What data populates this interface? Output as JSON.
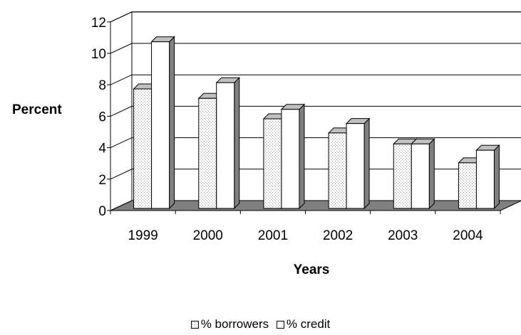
{
  "chart_data": {
    "type": "bar",
    "categories": [
      "1999",
      "2000",
      "2001",
      "2002",
      "2003",
      "2004"
    ],
    "series": [
      {
        "name": "% borrowers",
        "values": [
          7.6,
          7.0,
          5.7,
          4.8,
          4.1,
          2.9
        ],
        "color": "#e6e6e6",
        "pattern": "dotted"
      },
      {
        "name": "% credit",
        "values": [
          10.6,
          8.0,
          6.3,
          5.4,
          4.1,
          3.7
        ],
        "color": "#ffffff"
      }
    ],
    "ylabel": "Percent",
    "xlabel": "Years",
    "ylim": [
      0,
      12
    ],
    "yticks": [
      0,
      2,
      4,
      6,
      8,
      10,
      12
    ],
    "grid": true,
    "legend": "bottom",
    "floor_color": "#808080"
  }
}
